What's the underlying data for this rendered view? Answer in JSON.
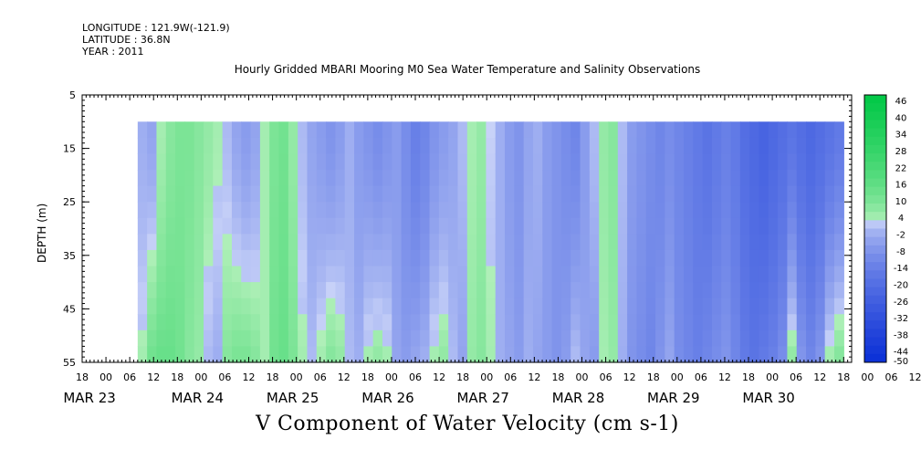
{
  "header": {
    "longitude": "LONGITUDE : 121.9W(-121.9)",
    "latitude": "LATITUDE : 36.8N",
    "year": "YEAR : 2011"
  },
  "colors": {
    "negative_low": "#c8d2f8",
    "negative_high": "#0a2fd6",
    "positive_low": "#c8f5c8",
    "positive_high": "#00c846",
    "no_data": "#ffffff"
  },
  "chart_data": {
    "type": "heatmap",
    "title": "Hourly Gridded MBARI Mooring M0 Sea Water Temperature and Salinity Observations",
    "xlabel": "V Component of Water Velocity (cm s-1)",
    "ylabel": "DEPTH (m)",
    "ylim": [
      5,
      55
    ],
    "y_reversed": true,
    "y_ticks": [
      5,
      15,
      25,
      35,
      45,
      55
    ],
    "data_depth_range": [
      10,
      55
    ],
    "x_hour_ticks": [
      "18",
      "00",
      "06",
      "12",
      "18",
      "00",
      "06",
      "12",
      "18",
      "00",
      "06",
      "12",
      "18",
      "00",
      "06",
      "12",
      "18",
      "00",
      "06",
      "12",
      "18",
      "00",
      "06",
      "12",
      "18",
      "00",
      "06",
      "12",
      "18",
      "00",
      "06",
      "12",
      "18",
      "00",
      "06",
      "12",
      "18"
    ],
    "x_day_labels": [
      "MAR 23",
      "MAR 24",
      "MAR 25",
      "MAR 26",
      "MAR 27",
      "MAR 28",
      "MAR 29",
      "MAR 30"
    ],
    "colorbar": {
      "ticks": [
        46,
        40,
        34,
        28,
        22,
        16,
        10,
        4,
        -2,
        -8,
        -14,
        -20,
        -26,
        -32,
        -38,
        -44,
        -50
      ],
      "range": [
        -50,
        46
      ]
    },
    "time_start": "MAR 22 18:00",
    "time_end": "MAR 30 20:00",
    "data_time_start_hour": 32,
    "data_time_end_hour": 215,
    "surface_columns_v": [
      -4,
      -6,
      2,
      6,
      8,
      8,
      6,
      4,
      2,
      -2,
      -6,
      -8,
      -6,
      2,
      8,
      10,
      4,
      -2,
      -6,
      -8,
      -10,
      -8,
      -4,
      -8,
      -10,
      -12,
      -10,
      -8,
      -12,
      -16,
      -14,
      -10,
      -8,
      -6,
      -2,
      2,
      4,
      0,
      -4,
      -8,
      -10,
      -6,
      -4,
      -8,
      -10,
      -12,
      -14,
      -8,
      -2,
      4,
      6,
      -2,
      -8,
      -10,
      -12,
      -14,
      -12,
      -14,
      -16,
      -18,
      -20,
      -18,
      -16,
      -18,
      -22,
      -24,
      -26,
      -24,
      -22,
      -20,
      -22,
      -24,
      -22,
      -20,
      -18
    ],
    "bottom_columns_v": [
      2,
      10,
      12,
      12,
      10,
      6,
      4,
      -2,
      -4,
      6,
      8,
      8,
      6,
      2,
      10,
      12,
      8,
      2,
      -2,
      2,
      6,
      4,
      -2,
      -4,
      2,
      4,
      2,
      -6,
      -8,
      -6,
      -4,
      2,
      4,
      -2,
      -6,
      4,
      6,
      2,
      -4,
      -6,
      -8,
      -4,
      -6,
      -8,
      -10,
      -8,
      -2,
      -6,
      -8,
      2,
      4,
      -4,
      -10,
      -12,
      -14,
      -10,
      -6,
      -12,
      -14,
      -16,
      -14,
      -12,
      -10,
      -14,
      -18,
      -20,
      -18,
      -16,
      -12,
      4,
      -10,
      -14,
      -10,
      2,
      6
    ]
  }
}
